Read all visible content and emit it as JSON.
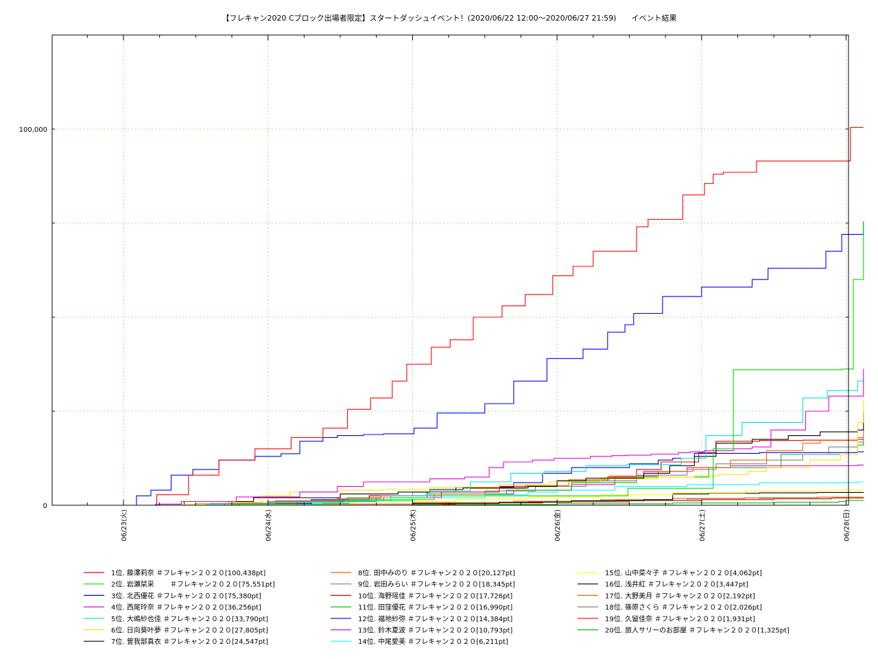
{
  "chart_data": {
    "type": "line",
    "title": "【フレキャン2020 Cブロック出場者限定】スタートダッシュイベント！(2020/06/22 12:00～2020/06/27 21:59)　　イベント結果",
    "xlabel": "",
    "ylabel": "",
    "grid": true,
    "legend_position": "bottom",
    "ylim": [
      0,
      125000
    ],
    "x_tick_labels": [
      "06/23(火)",
      "06/24(水)",
      "06/25(木)",
      "06/26(金)",
      "06/27(土)",
      "06/28(日)"
    ],
    "y_tick_labels": [
      {
        "value": 0,
        "label": "0"
      },
      {
        "value": 100000,
        "label": "100,000"
      }
    ],
    "series": [
      {
        "name": "1位. 藤澤莉奈 ＃フレキャン２０２０[100,438pt]",
        "color": "#ff0000",
        "x": [
          0.13,
          0.23,
          0.45,
          0.66,
          0.91,
          1.16,
          1.38,
          1.55,
          1.71,
          1.86,
          1.96,
          2.13,
          2.26,
          2.42,
          2.62,
          2.78,
          2.97,
          3.11,
          3.25,
          3.55,
          3.63,
          3.87,
          4.02,
          4.08,
          4.15,
          4.38,
          5.03,
          5.12
        ],
        "y": [
          0,
          2800,
          8000,
          12000,
          15000,
          18000,
          20500,
          25500,
          28500,
          33000,
          37500,
          42000,
          44000,
          50000,
          53000,
          56000,
          61000,
          63500,
          67500,
          74000,
          76000,
          82500,
          85500,
          88000,
          88500,
          91500,
          100438,
          100438
        ]
      },
      {
        "name": "2位. 岩瀬栞采　　 ＃フレキャン２０２０[75,551pt]",
        "color": "#00e000",
        "x": [
          0.0,
          0.77,
          1.38,
          1.56,
          2.15,
          3.49,
          4.08,
          4.22,
          4.97,
          5.05,
          5.12
        ],
        "y": [
          0,
          300,
          500,
          1500,
          2500,
          4500,
          15000,
          36000,
          36200,
          60000,
          75551
        ]
      },
      {
        "name": "3位. 北西優花 ＃フレキャン２０２０[75,380pt]",
        "color": "#0000ff",
        "x": [
          0.0,
          0.09,
          0.19,
          0.33,
          0.48,
          0.66,
          0.91,
          1.09,
          1.22,
          1.38,
          1.48,
          1.66,
          1.8,
          2.01,
          2.17,
          2.5,
          2.7,
          2.93,
          3.18,
          3.35,
          3.47,
          3.53,
          3.73,
          4.0,
          4.35,
          4.46,
          4.86,
          4.97,
          5.12
        ],
        "y": [
          0,
          2500,
          4000,
          8000,
          9500,
          12000,
          13000,
          13700,
          17000,
          18000,
          18500,
          18800,
          19000,
          20500,
          24500,
          27000,
          33000,
          39000,
          41500,
          46000,
          48000,
          51000,
          55500,
          58000,
          60000,
          63000,
          67500,
          72000,
          75380
        ]
      },
      {
        "name": "4位. 西尾玲奈 ＃フレキャン２０２０[36,256pt]",
        "color": "#e000e0",
        "x": [
          0.0,
          0.22,
          0.4,
          0.78,
          1.22,
          1.48,
          1.66,
          2.12,
          2.36,
          2.53,
          2.63,
          2.83,
          2.98,
          3.23,
          3.38,
          3.48,
          3.65,
          3.84,
          3.92,
          4.02,
          4.22,
          4.35,
          4.48,
          4.72,
          4.88,
          5.12
        ],
        "y": [
          0,
          300,
          1000,
          2200,
          3500,
          5000,
          6200,
          7000,
          7500,
          10000,
          11500,
          12000,
          12500,
          13000,
          13200,
          13300,
          13600,
          14000,
          14200,
          14500,
          15000,
          15500,
          20000,
          25000,
          29000,
          36256
        ]
      },
      {
        "name": "5位. 大嶋紗也佳 ＃フレキャン２０２０[33,790pt]",
        "color": "#00e0e0",
        "x": [
          0.0,
          0.57,
          1.0,
          1.53,
          1.85,
          2.12,
          2.4,
          2.68,
          2.91,
          3.2,
          3.48,
          3.86,
          4.03,
          4.28,
          4.7,
          4.87,
          5.08,
          5.12
        ],
        "y": [
          0,
          300,
          800,
          1200,
          2500,
          3800,
          6200,
          8500,
          9000,
          10500,
          10800,
          12500,
          18500,
          22000,
          28500,
          30500,
          33000,
          33790
        ]
      },
      {
        "name": "6位. 日向葵叶夢 ＃フレキャン２０２０[27,805pt]",
        "color": "#ffe000",
        "x": [
          0.1,
          0.3,
          0.72,
          0.96,
          1.15,
          1.5,
          1.8,
          2.12,
          2.6,
          2.95,
          3.3,
          3.7,
          3.95,
          4.12,
          4.32,
          4.45,
          4.75,
          4.96,
          5.08,
          5.12
        ],
        "y": [
          0,
          300,
          800,
          2500,
          3500,
          4000,
          4200,
          4800,
          5500,
          6200,
          7000,
          7500,
          7800,
          8200,
          9000,
          10000,
          12000,
          13500,
          22000,
          27805
        ]
      },
      {
        "name": "7位. 曽我部真衣 ＃フレキャン２０２０[24,547pt]",
        "color": "#000000",
        "x": [
          0.0,
          0.42,
          0.9,
          1.5,
          1.9,
          2.12,
          2.35,
          2.8,
          3.0,
          3.2,
          3.6,
          3.78,
          3.95,
          4.1,
          4.35,
          4.6,
          4.82,
          5.08,
          5.12
        ],
        "y": [
          0,
          1000,
          2000,
          3000,
          3500,
          4200,
          4600,
          5000,
          6500,
          7200,
          8500,
          10500,
          13000,
          16500,
          17500,
          18500,
          19500,
          20000,
          24547
        ]
      },
      {
        "name": "8位. 田中みのり ＃フレキャン２０２０[20,127pt]",
        "color": "#ff6000",
        "x": [
          0.0,
          0.5,
          1.0,
          1.48,
          1.78,
          2.0,
          2.4,
          2.78,
          3.08,
          3.36,
          3.7,
          3.94,
          4.2,
          4.45,
          4.7,
          4.82,
          5.08,
          5.12
        ],
        "y": [
          0,
          400,
          1000,
          1800,
          2500,
          3500,
          4500,
          5200,
          6800,
          7800,
          9000,
          10000,
          12000,
          14500,
          16500,
          17200,
          18000,
          20127
        ]
      },
      {
        "name": "9位. 岩田みらい ＃フレキャン２０２０[18,345pt]",
        "color": "#808080",
        "x": [
          0.0,
          0.6,
          1.05,
          1.55,
          1.85,
          2.15,
          2.5,
          2.85,
          3.2,
          3.55,
          3.9,
          4.1,
          4.45,
          4.7,
          4.88,
          5.08,
          5.12
        ],
        "y": [
          0,
          500,
          1200,
          2000,
          2500,
          3000,
          3800,
          5000,
          6500,
          8000,
          9500,
          11000,
          12000,
          13500,
          15500,
          16800,
          18345
        ]
      },
      {
        "name": "10位. 海野瑶佳 ＃フレキャン２０２０[17,726pt]",
        "color": "#e00000",
        "x": [
          0.0,
          0.7,
          1.2,
          1.7,
          2.2,
          2.6,
          3.0,
          3.35,
          3.55,
          3.72,
          3.98,
          4.1,
          4.4,
          4.7,
          5.08,
          5.12
        ],
        "y": [
          0,
          500,
          1200,
          2500,
          3500,
          5000,
          6500,
          7500,
          9500,
          11500,
          14000,
          17000,
          17200,
          17300,
          17500,
          17726
        ]
      },
      {
        "name": "11位. 田窪優花 ＃フレキャン２０２０[16,990pt]",
        "color": "#00c000",
        "x": [
          0.0,
          0.7,
          1.2,
          1.75,
          2.1,
          2.65,
          3.1,
          3.55,
          4.05,
          4.55,
          5.08,
          5.12
        ],
        "y": [
          0,
          400,
          1000,
          2000,
          3000,
          4000,
          6000,
          7500,
          10000,
          13500,
          16000,
          16990
        ]
      },
      {
        "name": "12位. 福地紗弥 ＃フレキャン２０２０[14,384pt]",
        "color": "#0000e0",
        "x": [
          0.0,
          0.8,
          1.3,
          1.7,
          2.1,
          2.3,
          2.7,
          2.9,
          3.1,
          3.5,
          3.7,
          3.8,
          3.95,
          4.4,
          5.08,
          5.12
        ],
        "y": [
          0,
          500,
          1500,
          2500,
          3500,
          4800,
          6000,
          8500,
          10000,
          11000,
          12000,
          12500,
          13800,
          14000,
          14200,
          14384
        ]
      },
      {
        "name": "13位. 鈴木夏波 ＃フレキャン２０２０[10,793pt]",
        "color": "#e000e0",
        "x": [
          0.0,
          0.8,
          1.3,
          1.8,
          2.2,
          2.7,
          3.1,
          3.4,
          3.6,
          3.9,
          4.2,
          5.08,
          5.12
        ],
        "y": [
          0,
          500,
          1200,
          2000,
          3000,
          4000,
          5500,
          7500,
          9000,
          10000,
          10500,
          10700,
          10793
        ]
      },
      {
        "name": "14位. 中尾愛美 ＃フレキャン２０２０[6,211pt]",
        "color": "#00ffff",
        "x": [
          0.0,
          1.0,
          1.5,
          2.0,
          2.5,
          2.8,
          3.0,
          3.4,
          3.9,
          4.4,
          5.08,
          5.12
        ],
        "y": [
          0,
          500,
          1200,
          2000,
          2800,
          3500,
          4000,
          5000,
          5500,
          6000,
          6200,
          6211
        ]
      },
      {
        "name": "15位. 山中菜々子 ＃フレキャン２０２０[4,062pt]",
        "color": "#ffff00",
        "x": [
          0.0,
          1.0,
          1.6,
          2.3,
          2.8,
          3.3,
          3.8,
          4.3,
          4.8,
          5.12
        ],
        "y": [
          0,
          500,
          1000,
          1600,
          2200,
          2800,
          3300,
          3700,
          4000,
          4062
        ]
      },
      {
        "name": "16位. 浅井紅 ＃フレキャン２０２０[3,447pt]",
        "color": "#000000",
        "x": [
          0.0,
          2.0,
          2.6,
          3.1,
          3.6,
          3.8,
          4.05,
          4.4,
          4.8,
          5.12
        ],
        "y": [
          0,
          500,
          800,
          1200,
          1500,
          3000,
          3200,
          3300,
          3400,
          3447
        ]
      },
      {
        "name": "17位. 大野美月 ＃フレキャン２０２０[2,192pt]",
        "color": "#ff6000",
        "x": [
          0.0,
          1.2,
          2.0,
          2.7,
          3.3,
          3.8,
          4.3,
          4.8,
          5.12
        ],
        "y": [
          0,
          300,
          700,
          1100,
          1500,
          1800,
          2000,
          2150,
          2192
        ]
      },
      {
        "name": "18位. 篠原さくら ＃フレキャン２０２０[2,026pt]",
        "color": "#808080",
        "x": [
          0.0,
          1.3,
          2.2,
          2.8,
          3.4,
          3.9,
          4.4,
          4.9,
          5.12
        ],
        "y": [
          0,
          300,
          600,
          1000,
          1300,
          1600,
          1800,
          2000,
          2026
        ]
      },
      {
        "name": "19位. 久留佳奈 ＃フレキャン２０２０[1,931pt]",
        "color": "#ff0000",
        "x": [
          0.0,
          1.5,
          2.3,
          2.9,
          3.5,
          4.0,
          4.5,
          4.9,
          5.12
        ],
        "y": [
          0,
          300,
          600,
          900,
          1200,
          1500,
          1700,
          1900,
          1931
        ]
      },
      {
        "name": "20位. 旅人サリーのお部屋 ＃フレキャン２０２０[1,325pt]",
        "color": "#00c000",
        "x": [
          0.0,
          2.0,
          3.0,
          3.8,
          4.5,
          4.95,
          5.0,
          5.12
        ],
        "y": [
          0,
          200,
          400,
          600,
          800,
          1000,
          1300,
          1325
        ]
      }
    ]
  }
}
